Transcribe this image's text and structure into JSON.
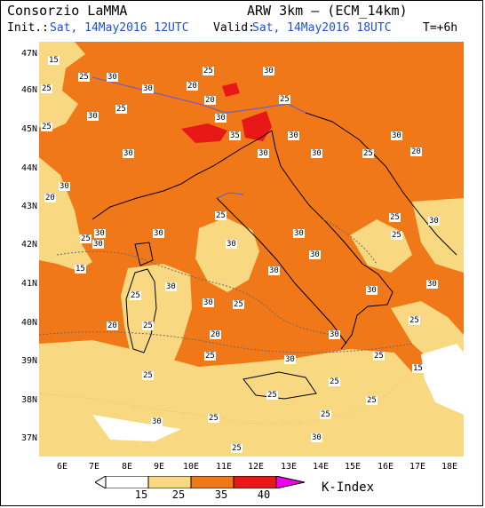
{
  "header": {
    "org": "Consorzio LaMMA",
    "model": "ARW 3km – (ECM_14km)",
    "init_label": "Init.:",
    "init_value": "Sat, 14May2016 12UTC",
    "valid_label": "Valid:",
    "valid_value": "Sat, 14May2016 18UTC",
    "lead": "T=+6h"
  },
  "axes": {
    "lat_labels": [
      "47N",
      "46N",
      "45N",
      "44N",
      "43N",
      "42N",
      "41N",
      "40N",
      "39N",
      "38N",
      "37N"
    ],
    "lon_labels": [
      "6E",
      "7E",
      "8E",
      "9E",
      "10E",
      "11E",
      "12E",
      "13E",
      "14E",
      "15E",
      "16E",
      "17E",
      "18E"
    ]
  },
  "legend": {
    "title": "K-Index",
    "ticks": [
      "15",
      "25",
      "35",
      "40"
    ],
    "colors": [
      "#ffffff",
      "#f8d880",
      "#f07818",
      "#e81818",
      "#f000f0"
    ]
  },
  "contour_labels": {
    "values": [
      "15",
      "25",
      "30",
      "20",
      "25",
      "30",
      "25",
      "30",
      "20",
      "25",
      "30",
      "25",
      "30",
      "35",
      "30",
      "30",
      "25",
      "20",
      "30",
      "30",
      "30",
      "30",
      "25",
      "20",
      "30",
      "25",
      "15",
      "30",
      "30",
      "30",
      "30",
      "25",
      "30",
      "30",
      "30",
      "25",
      "30",
      "30",
      "25",
      "20",
      "25",
      "25",
      "30",
      "30",
      "25",
      "25",
      "30",
      "30",
      "25",
      "25",
      "15",
      "25",
      "25",
      "25",
      "20",
      "25",
      "25",
      "30",
      "25",
      "25",
      "30"
    ]
  },
  "colors": {
    "k_lt15": "#ffffff",
    "k_15_25": "#f8d880",
    "k_25_35": "#f07818",
    "k_35_40": "#e81818",
    "k_gt40": "#f000f0"
  }
}
